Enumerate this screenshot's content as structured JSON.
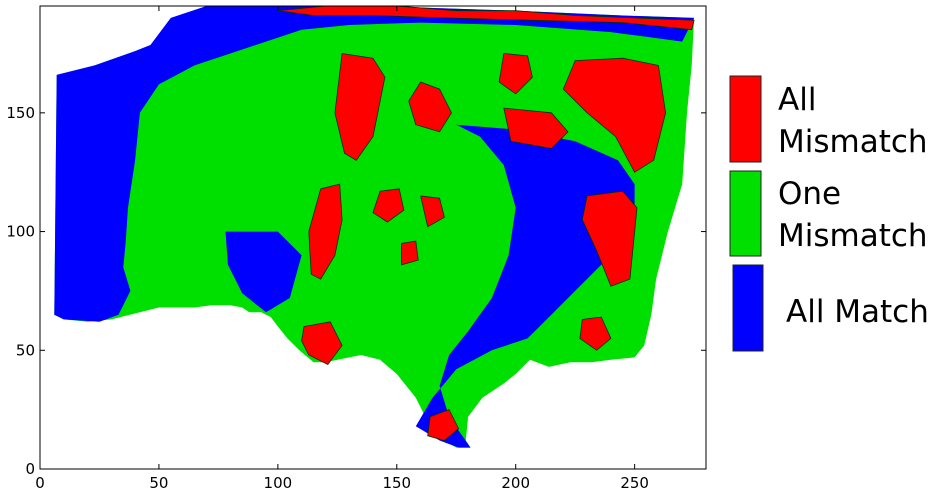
{
  "chart_data": {
    "type": "heatmap",
    "title": "",
    "xlabel": "",
    "ylabel": "",
    "xlim": [
      0,
      280
    ],
    "ylim": [
      0,
      195
    ],
    "xticks": [
      0,
      50,
      100,
      150,
      200,
      250
    ],
    "yticks": [
      0,
      50,
      100,
      150
    ],
    "grid": false,
    "legend_placement": "right",
    "legend": [
      {
        "lines": [
          "All",
          "Mismatch"
        ],
        "color": "#ff0000"
      },
      {
        "lines": [
          "One",
          "Mismatch"
        ],
        "color": "#00e000"
      },
      {
        "lines": [
          "All Match"
        ],
        "color": "#0000ff"
      }
    ],
    "categories": [
      "All Mismatch",
      "One Mismatch",
      "All Match"
    ],
    "colors": {
      "all_mismatch": "#ff0000",
      "one_mismatch": "#00e000",
      "all_match": "#0000ff"
    },
    "regions": {
      "all_match": [
        [
          [
            7,
            166
          ],
          [
            23,
            170
          ],
          [
            40,
            176
          ],
          [
            55,
            182
          ],
          [
            60,
            190
          ],
          [
            75,
            193
          ],
          [
            100,
            195
          ],
          [
            140,
            195
          ],
          [
            200,
            193
          ],
          [
            245,
            191
          ],
          [
            275,
            190
          ],
          [
            270,
            180
          ],
          [
            240,
            184
          ],
          [
            200,
            187
          ],
          [
            160,
            188
          ],
          [
            130,
            187
          ],
          [
            110,
            185
          ],
          [
            95,
            180
          ],
          [
            80,
            175
          ],
          [
            65,
            170
          ],
          [
            50,
            162
          ],
          [
            42,
            150
          ],
          [
            40,
            130
          ],
          [
            37,
            110
          ],
          [
            36,
            95
          ],
          [
            35,
            85
          ],
          [
            38,
            75
          ],
          [
            33,
            65
          ],
          [
            25,
            62
          ],
          [
            10,
            63
          ],
          [
            6,
            65
          ]
        ],
        [
          [
            40,
            170
          ],
          [
            55,
            175
          ],
          [
            70,
            180
          ],
          [
            85,
            188
          ],
          [
            105,
            192
          ],
          [
            120,
            195
          ],
          [
            70,
            195
          ],
          [
            55,
            190
          ]
        ],
        [
          [
            175,
            145
          ],
          [
            200,
            143
          ],
          [
            225,
            138
          ],
          [
            243,
            130
          ],
          [
            250,
            120
          ],
          [
            250,
            100
          ],
          [
            240,
            90
          ],
          [
            225,
            75
          ],
          [
            215,
            65
          ],
          [
            205,
            55
          ],
          [
            190,
            50
          ],
          [
            175,
            42
          ],
          [
            165,
            30
          ],
          [
            158,
            18
          ],
          [
            168,
            12
          ],
          [
            176,
            9
          ],
          [
            181,
            9
          ],
          [
            172,
            22
          ],
          [
            168,
            35
          ],
          [
            172,
            48
          ],
          [
            180,
            58
          ],
          [
            190,
            72
          ],
          [
            197,
            90
          ],
          [
            200,
            110
          ],
          [
            195,
            128
          ],
          [
            185,
            140
          ]
        ],
        [
          [
            78,
            100
          ],
          [
            100,
            100
          ],
          [
            110,
            90
          ],
          [
            105,
            72
          ],
          [
            95,
            66
          ],
          [
            85,
            74
          ],
          [
            79,
            86
          ]
        ]
      ],
      "all_mismatch": [
        [
          [
            100,
            193
          ],
          [
            120,
            195
          ],
          [
            150,
            195
          ],
          [
            175,
            193
          ],
          [
            200,
            193
          ],
          [
            225,
            191
          ],
          [
            250,
            190
          ],
          [
            275,
            189
          ],
          [
            274,
            185
          ],
          [
            245,
            188
          ],
          [
            205,
            189
          ],
          [
            170,
            190
          ],
          [
            140,
            191
          ],
          [
            115,
            191
          ]
        ],
        [
          [
            127,
            175
          ],
          [
            140,
            173
          ],
          [
            145,
            165
          ],
          [
            140,
            140
          ],
          [
            133,
            130
          ],
          [
            128,
            133
          ],
          [
            124,
            150
          ]
        ],
        [
          [
            160,
            163
          ],
          [
            168,
            160
          ],
          [
            173,
            150
          ],
          [
            168,
            142
          ],
          [
            158,
            145
          ],
          [
            155,
            155
          ]
        ],
        [
          [
            195,
            175
          ],
          [
            205,
            174
          ],
          [
            207,
            165
          ],
          [
            200,
            158
          ],
          [
            193,
            163
          ]
        ],
        [
          [
            225,
            172
          ],
          [
            245,
            173
          ],
          [
            260,
            170
          ],
          [
            263,
            150
          ],
          [
            258,
            130
          ],
          [
            250,
            125
          ],
          [
            242,
            140
          ],
          [
            230,
            150
          ],
          [
            220,
            160
          ]
        ],
        [
          [
            195,
            152
          ],
          [
            215,
            150
          ],
          [
            222,
            142
          ],
          [
            215,
            135
          ],
          [
            198,
            138
          ]
        ],
        [
          [
            118,
            118
          ],
          [
            126,
            120
          ],
          [
            127,
            105
          ],
          [
            124,
            90
          ],
          [
            118,
            80
          ],
          [
            114,
            82
          ],
          [
            113,
            100
          ]
        ],
        [
          [
            143,
            117
          ],
          [
            151,
            118
          ],
          [
            153,
            109
          ],
          [
            146,
            104
          ],
          [
            140,
            108
          ]
        ],
        [
          [
            160,
            115
          ],
          [
            168,
            114
          ],
          [
            170,
            106
          ],
          [
            163,
            102
          ]
        ],
        [
          [
            230,
            115
          ],
          [
            245,
            117
          ],
          [
            251,
            110
          ],
          [
            248,
            80
          ],
          [
            240,
            77
          ],
          [
            234,
            92
          ],
          [
            228,
            105
          ]
        ],
        [
          [
            111,
            60
          ],
          [
            122,
            62
          ],
          [
            127,
            52
          ],
          [
            121,
            44
          ],
          [
            113,
            48
          ],
          [
            110,
            54
          ]
        ],
        [
          [
            228,
            63
          ],
          [
            236,
            64
          ],
          [
            240,
            55
          ],
          [
            234,
            50
          ],
          [
            227,
            55
          ]
        ],
        [
          [
            164,
            22
          ],
          [
            172,
            25
          ],
          [
            176,
            17
          ],
          [
            170,
            12
          ],
          [
            163,
            14
          ]
        ],
        [
          [
            152,
            95
          ],
          [
            158,
            96
          ],
          [
            159,
            88
          ],
          [
            152,
            86
          ]
        ]
      ]
    },
    "footprint": [
      [
        7,
        166
      ],
      [
        23,
        170
      ],
      [
        40,
        176
      ],
      [
        55,
        182
      ],
      [
        60,
        190
      ],
      [
        75,
        193
      ],
      [
        100,
        195
      ],
      [
        140,
        195
      ],
      [
        200,
        193
      ],
      [
        245,
        191
      ],
      [
        275,
        190
      ],
      [
        274,
        170
      ],
      [
        272,
        150
      ],
      [
        270,
        120
      ],
      [
        264,
        100
      ],
      [
        259,
        80
      ],
      [
        257,
        65
      ],
      [
        254,
        52
      ],
      [
        250,
        47
      ],
      [
        240,
        46
      ],
      [
        232,
        45
      ],
      [
        223,
        45
      ],
      [
        214,
        43
      ],
      [
        206,
        46
      ],
      [
        200,
        40
      ],
      [
        195,
        36
      ],
      [
        186,
        30
      ],
      [
        180,
        22
      ],
      [
        179,
        12
      ],
      [
        181,
        9
      ],
      [
        175,
        9
      ],
      [
        170,
        12
      ],
      [
        166,
        18
      ],
      [
        162,
        22
      ],
      [
        158,
        30
      ],
      [
        154,
        35
      ],
      [
        150,
        40
      ],
      [
        143,
        46
      ],
      [
        135,
        48
      ],
      [
        120,
        45
      ],
      [
        115,
        45
      ],
      [
        109,
        50
      ],
      [
        104,
        55
      ],
      [
        100,
        60
      ],
      [
        97,
        64
      ],
      [
        93,
        66
      ],
      [
        88,
        66
      ],
      [
        85,
        68
      ],
      [
        80,
        69
      ],
      [
        72,
        69
      ],
      [
        65,
        68
      ],
      [
        50,
        68
      ],
      [
        42,
        66
      ],
      [
        30,
        63
      ],
      [
        20,
        62
      ],
      [
        10,
        63
      ],
      [
        6,
        65
      ]
    ]
  }
}
